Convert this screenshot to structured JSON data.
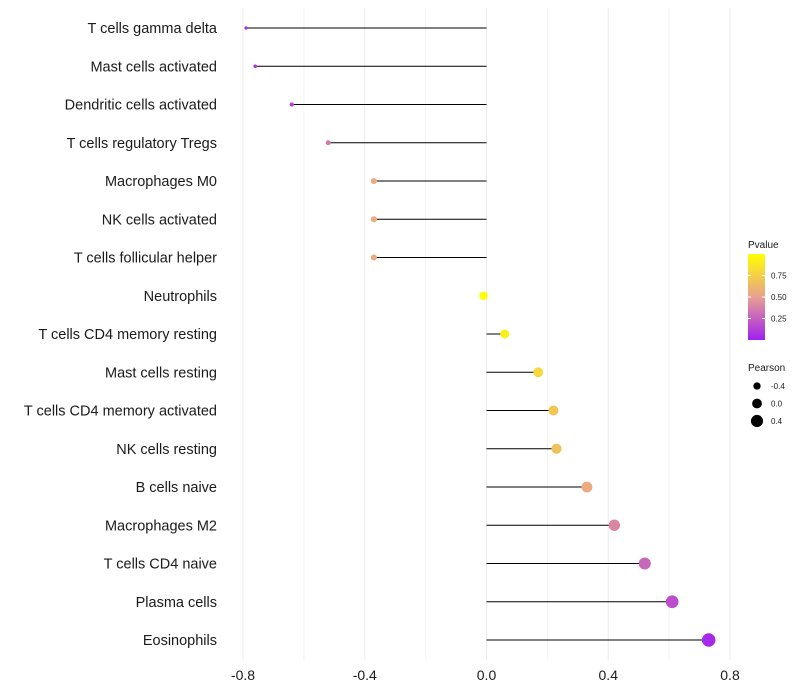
{
  "chart_data": {
    "type": "lollipop",
    "xlim": [
      -0.8,
      0.8
    ],
    "x_ticks": [
      -0.8,
      -0.4,
      0.0,
      0.4,
      0.8
    ],
    "x_tick_labels": [
      "-0.8",
      "-0.4",
      "0.0",
      "0.4",
      "0.8"
    ],
    "grid": true,
    "categories": [
      "T cells gamma delta",
      "Mast cells activated",
      "Dendritic cells activated",
      "T cells regulatory  Tregs",
      "Macrophages M0",
      "NK cells activated",
      "T cells follicular helper",
      "Neutrophils",
      "T cells CD4 memory resting",
      "Mast cells resting",
      "T cells CD4 memory activated",
      "NK cells resting",
      "B cells naive",
      "Macrophages M2",
      "T cells CD4 naive",
      "Plasma cells",
      "Eosinophils"
    ],
    "pearson": [
      -0.79,
      -0.76,
      -0.64,
      -0.52,
      -0.37,
      -0.37,
      -0.37,
      -0.01,
      0.06,
      0.17,
      0.22,
      0.23,
      0.33,
      0.42,
      0.52,
      0.61,
      0.73
    ],
    "pvalue": [
      0.04,
      0.06,
      0.14,
      0.35,
      0.55,
      0.56,
      0.56,
      0.99,
      0.92,
      0.8,
      0.7,
      0.68,
      0.56,
      0.4,
      0.28,
      0.18,
      0.04
    ],
    "legend_pvalue": {
      "title": "Pvalue",
      "ticks": [
        0.75,
        0.5,
        0.25
      ],
      "tick_labels": [
        "0.75",
        "0.50",
        "0.25"
      ],
      "range": [
        0.0,
        1.0
      ],
      "colors": {
        "low": "#a020f0",
        "mid": "#e8a090",
        "high": "#ffff00"
      }
    },
    "legend_pearson": {
      "title": "Pearson",
      "values": [
        -0.4,
        0.0,
        0.4
      ],
      "labels": [
        "-0.4",
        "0.0",
        "0.4"
      ]
    }
  }
}
